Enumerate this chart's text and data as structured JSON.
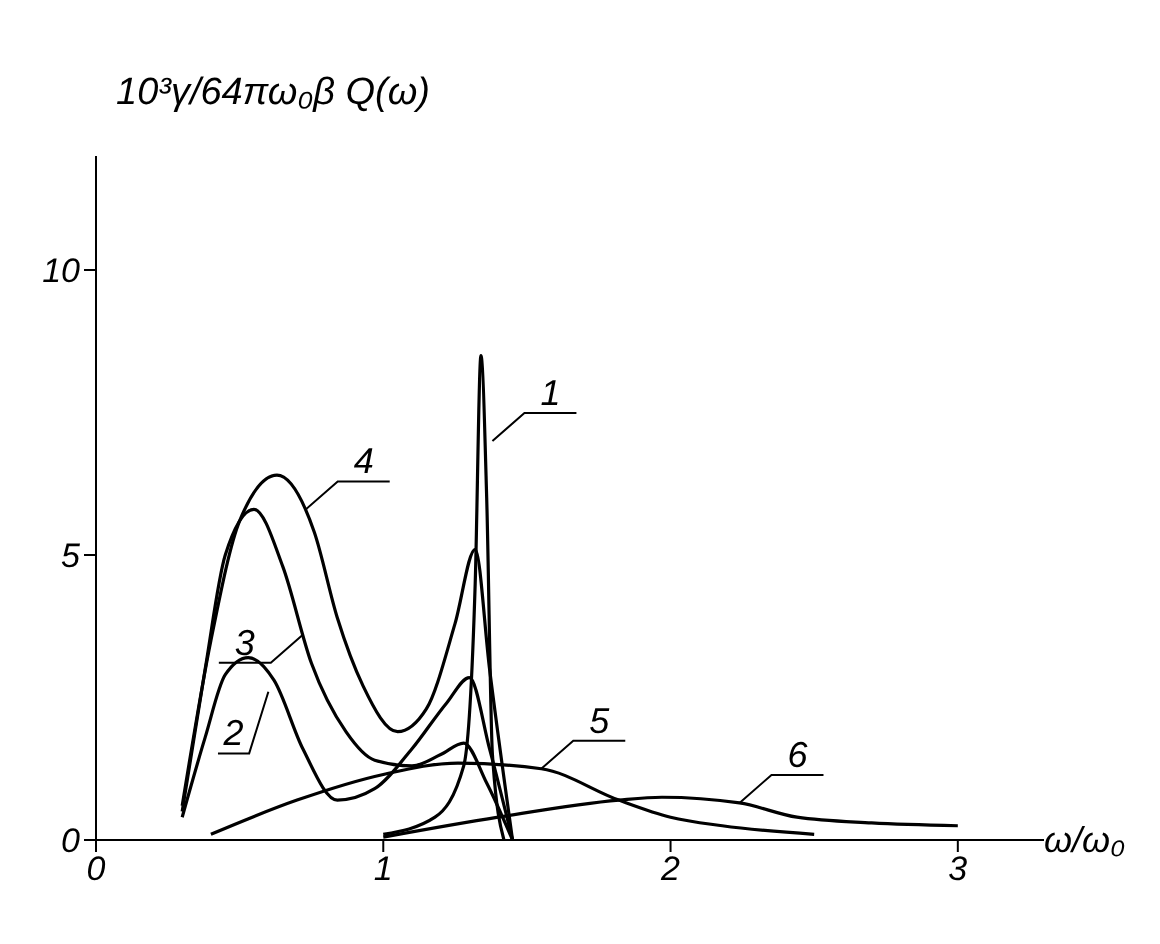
{
  "chart_data": {
    "type": "line",
    "xlabel": "ω/ω₀",
    "ylabel": "10³γ/64πω₀β Q(ω)",
    "xlim": [
      0,
      3.3
    ],
    "ylim": [
      0,
      12
    ],
    "xticks": [
      0,
      1,
      2,
      3
    ],
    "yticks": [
      0,
      5,
      10
    ],
    "marker": "none",
    "line_style": "solid",
    "series": [
      {
        "color": "#000000",
        "x": [
          1.0,
          1.18,
          1.28,
          1.32,
          1.34,
          1.36,
          1.38,
          1.42
        ],
        "values": [
          0.1,
          0.4,
          1.3,
          4.5,
          8.5,
          6.0,
          1.5,
          0
        ]
      },
      {
        "color": "#000000",
        "x": [
          0.3,
          0.38,
          0.45,
          0.53,
          0.62,
          0.72,
          0.84,
          0.97,
          1.1,
          1.22,
          1.3,
          1.37,
          1.45
        ],
        "values": [
          0.4,
          1.8,
          2.9,
          3.2,
          2.8,
          1.6,
          0.7,
          0.9,
          1.6,
          2.4,
          2.85,
          1.6,
          0
        ]
      },
      {
        "color": "#000000",
        "x": [
          0.3,
          0.38,
          0.45,
          0.55,
          0.65,
          0.75,
          0.87,
          0.97,
          1.1,
          1.2,
          1.28,
          1.36,
          1.45
        ],
        "values": [
          0.5,
          3.0,
          5.0,
          5.8,
          4.8,
          3.1,
          1.9,
          1.4,
          1.3,
          1.5,
          1.7,
          1.0,
          0
        ]
      },
      {
        "color": "#000000",
        "x": [
          0.3,
          0.4,
          0.5,
          0.63,
          0.76,
          0.84,
          0.93,
          1.05,
          1.15,
          1.25,
          1.32,
          1.37,
          1.45
        ],
        "values": [
          0.6,
          3.5,
          5.6,
          6.4,
          5.4,
          3.9,
          2.7,
          1.9,
          2.3,
          3.8,
          5.1,
          3.0,
          0
        ]
      },
      {
        "color": "#000000",
        "x": [
          0.4,
          0.7,
          1.0,
          1.26,
          1.55,
          1.82,
          2.0,
          2.18,
          2.5
        ],
        "values": [
          0.1,
          0.7,
          1.15,
          1.35,
          1.25,
          0.7,
          0.4,
          0.25,
          0.1
        ]
      },
      {
        "color": "#000000",
        "x": [
          1.0,
          1.4,
          1.82,
          1.97,
          2.24,
          2.44,
          2.7,
          3.0
        ],
        "values": [
          0.05,
          0.4,
          0.7,
          0.75,
          0.65,
          0.4,
          0.3,
          0.25
        ]
      }
    ],
    "annotations": [
      {
        "text": "1",
        "x": 1.38,
        "y": 7
      },
      {
        "text": "2",
        "x": 0.6,
        "y": 2.6
      },
      {
        "text": "3",
        "x": 0.72,
        "y": 3.6
      },
      {
        "text": "4",
        "x": 0.73,
        "y": 5.8
      },
      {
        "text": "5",
        "x": 1.55,
        "y": 1.25
      },
      {
        "text": "6",
        "x": 2.24,
        "y": 0.65
      }
    ]
  }
}
